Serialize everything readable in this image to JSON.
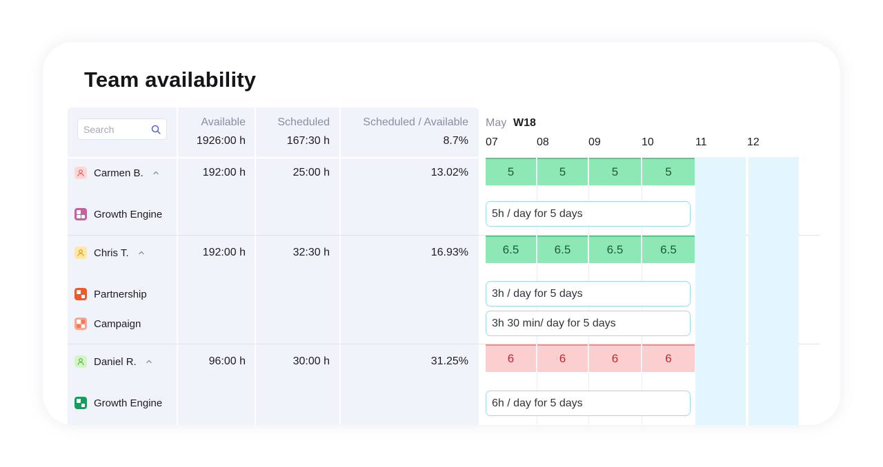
{
  "title": "Team availability",
  "search": {
    "placeholder": "Search"
  },
  "columns": {
    "available": {
      "label": "Available",
      "total": "1926:00 h"
    },
    "scheduled": {
      "label": "Scheduled",
      "total": "167:30 h"
    },
    "ratio": {
      "label": "Scheduled / Available",
      "total": "8.7%"
    }
  },
  "calendar": {
    "month": "May",
    "week": "W18",
    "days": [
      "07",
      "08",
      "09",
      "10",
      "11",
      "12"
    ]
  },
  "people": [
    {
      "name": "Carmen B.",
      "available": "192:00 h",
      "scheduled": "25:00 h",
      "ratio": "13.02%",
      "status": "ok",
      "daily": [
        "5",
        "5",
        "5",
        "5"
      ],
      "projects": [
        {
          "name": "Growth Engine",
          "allocation": "5h / day for 5 days"
        }
      ]
    },
    {
      "name": "Chris T.",
      "available": "192:00 h",
      "scheduled": "32:30 h",
      "ratio": "16.93%",
      "status": "ok",
      "daily": [
        "6.5",
        "6.5",
        "6.5",
        "6.5"
      ],
      "projects": [
        {
          "name": "Partnership",
          "allocation": "3h / day for 5 days"
        },
        {
          "name": "Campaign",
          "allocation": "3h 30 min/ day for 5 days"
        }
      ]
    },
    {
      "name": "Daniel R.",
      "available": "96:00 h",
      "scheduled": "30:00 h",
      "ratio": "31.25%",
      "status": "over",
      "daily": [
        "6",
        "6",
        "6",
        "6"
      ],
      "projects": [
        {
          "name": "Growth Engine",
          "allocation": "6h / day for 5 days"
        }
      ]
    }
  ],
  "colors": {
    "ok_cell": "#8ee8b6",
    "over_cell": "#fbcfd0",
    "weekend": "#e3f6fd",
    "accent": "#5b5fd6"
  }
}
